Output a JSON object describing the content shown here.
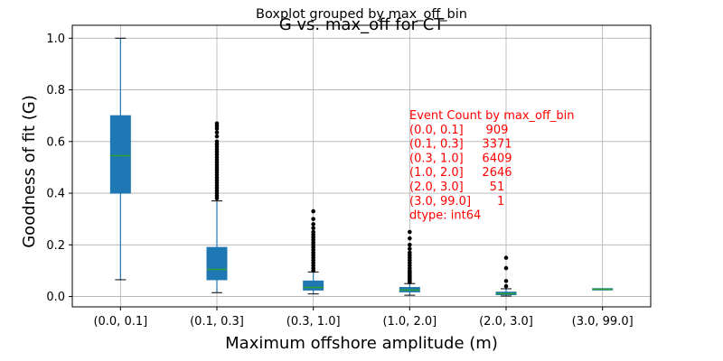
{
  "chart_data": {
    "type": "boxplot",
    "suptitle": "Boxplot grouped by max_off_bin",
    "title": "G vs. max_off for CT",
    "xlabel": "Maximum offshore amplitude (m)",
    "ylabel": "Goodness of fit (G)",
    "ylim": [
      -0.04,
      1.05
    ],
    "yticks": [
      0.0,
      0.2,
      0.4,
      0.6,
      0.8,
      1.0
    ],
    "ytick_labels": [
      "0.0",
      "0.2",
      "0.4",
      "0.6",
      "0.8",
      "1.0"
    ],
    "grid": true,
    "categories": [
      "(0.0, 0.1]",
      "(0.1, 0.3]",
      "(0.3, 1.0]",
      "(1.0, 2.0]",
      "(2.0, 3.0]",
      "(3.0, 99.0]"
    ],
    "boxes": [
      {
        "whislo": 0.065,
        "q1": 0.4,
        "med": 0.545,
        "q3": 0.7,
        "whishi": 1.0,
        "fliers": []
      },
      {
        "whislo": 0.015,
        "q1": 0.065,
        "med": 0.105,
        "q3": 0.19,
        "whishi": 0.37,
        "fliers": [
          0.38,
          0.39,
          0.4,
          0.41,
          0.42,
          0.43,
          0.44,
          0.45,
          0.46,
          0.47,
          0.48,
          0.49,
          0.5,
          0.51,
          0.52,
          0.53,
          0.54,
          0.55,
          0.56,
          0.57,
          0.58,
          0.59,
          0.6,
          0.62,
          0.635,
          0.65,
          0.66,
          0.67
        ]
      },
      {
        "whislo": 0.01,
        "q1": 0.025,
        "med": 0.035,
        "q3": 0.06,
        "whishi": 0.095,
        "fliers": [
          0.1,
          0.11,
          0.12,
          0.13,
          0.14,
          0.15,
          0.16,
          0.17,
          0.18,
          0.19,
          0.2,
          0.21,
          0.22,
          0.23,
          0.24,
          0.25,
          0.265,
          0.28,
          0.3,
          0.33
        ]
      },
      {
        "whislo": 0.005,
        "q1": 0.018,
        "med": 0.025,
        "q3": 0.035,
        "whishi": 0.05,
        "fliers": [
          0.055,
          0.06,
          0.065,
          0.07,
          0.075,
          0.08,
          0.085,
          0.09,
          0.095,
          0.1,
          0.11,
          0.12,
          0.13,
          0.14,
          0.15,
          0.16,
          0.17,
          0.185,
          0.2,
          0.225,
          0.25
        ]
      },
      {
        "whislo": 0.002,
        "q1": 0.007,
        "med": 0.011,
        "q3": 0.017,
        "whishi": 0.03,
        "fliers": [
          0.04,
          0.06,
          0.11,
          0.15
        ]
      },
      {
        "whislo": 0.028,
        "q1": 0.028,
        "med": 0.028,
        "q3": 0.028,
        "whishi": 0.028,
        "fliers": []
      }
    ],
    "annotation_lines": [
      "Event Count by max_off_bin",
      "(0.0, 0.1]      909",
      "(0.1, 0.3]     3371",
      "(0.3, 1.0]     6409",
      "(1.0, 2.0]     2646",
      "(2.0, 3.0]       51",
      "(3.0, 99.0]       1",
      "dtype: int64"
    ],
    "colors": {
      "box_fill": "#1f77b4",
      "median": "#2ca02c",
      "whisker": "#1f77b4",
      "cap": "#000000",
      "flier": "#000000",
      "grid": "#b0b0b0",
      "annotation": "#ff0000"
    }
  }
}
